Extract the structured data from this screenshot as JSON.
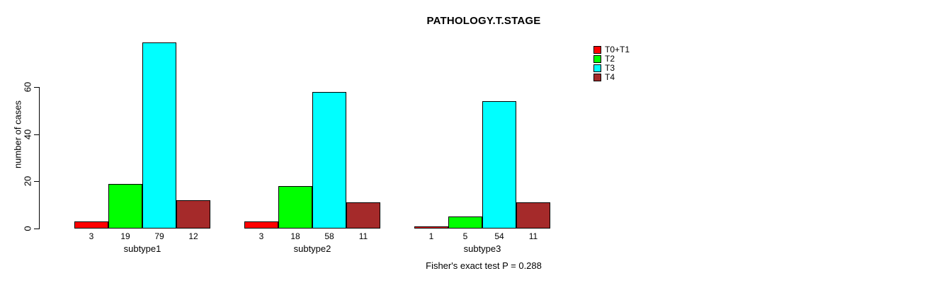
{
  "title": "PATHOLOGY.T.STAGE",
  "annotation": "Fisher's exact test P = 0.288",
  "colors": {
    "background": "#FFFFFF",
    "axis": "#000000",
    "text": "#000000",
    "series": [
      "#FF0000",
      "#00FF00",
      "#00FFFF",
      "#A52A2A"
    ]
  },
  "chart_data": {
    "type": "bar",
    "grouped": true,
    "title": "PATHOLOGY.T.STAGE",
    "categories": [
      "subtype1",
      "subtype2",
      "subtype3"
    ],
    "series": [
      {
        "name": "T0+T1",
        "color": "#FF0000",
        "values": [
          3,
          3,
          1
        ]
      },
      {
        "name": "T2",
        "color": "#00FF00",
        "values": [
          19,
          18,
          5
        ]
      },
      {
        "name": "T3",
        "color": "#00FFFF",
        "values": [
          79,
          58,
          54
        ]
      },
      {
        "name": "T4",
        "color": "#A52A2A",
        "values": [
          12,
          11,
          11
        ]
      }
    ],
    "xlabel": "",
    "ylabel": "number of cases",
    "yticks": [
      0,
      20,
      40,
      60
    ],
    "ylim": [
      0,
      80
    ],
    "grid": false,
    "bar_value_labels_shown": true,
    "legend_position": "top-right",
    "annotation": "Fisher's exact test P = 0.288"
  }
}
